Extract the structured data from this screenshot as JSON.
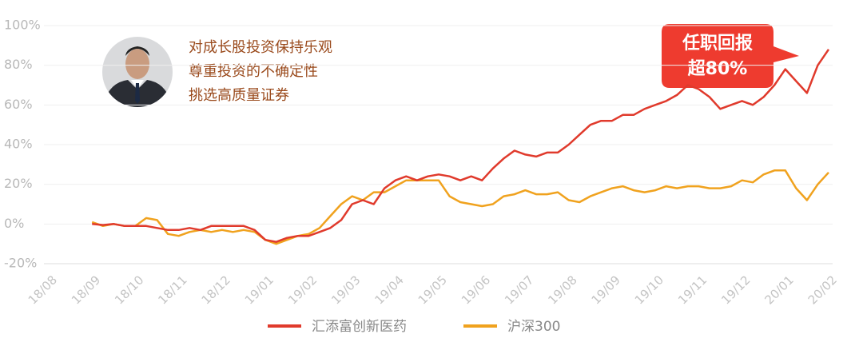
{
  "chart_data": {
    "type": "line",
    "categories": [
      "18/08",
      null,
      null,
      null,
      "18/09",
      null,
      null,
      null,
      "18/10",
      null,
      null,
      null,
      "18/11",
      null,
      null,
      null,
      "18/12",
      null,
      null,
      null,
      "19/01",
      null,
      null,
      null,
      "19/02",
      null,
      null,
      null,
      "19/03",
      null,
      null,
      null,
      "19/04",
      null,
      null,
      null,
      "19/05",
      null,
      null,
      null,
      "19/06",
      null,
      null,
      null,
      "19/07",
      null,
      null,
      null,
      "19/08",
      null,
      null,
      null,
      "19/09",
      null,
      null,
      null,
      "19/10",
      null,
      null,
      null,
      "19/11",
      null,
      null,
      null,
      "19/12",
      null,
      null,
      null,
      "20/01",
      null,
      null,
      null,
      "20/02"
    ],
    "series": [
      {
        "name": "汇添富创新医药",
        "color": "#e03a2c",
        "values": [
          null,
          null,
          null,
          null,
          0,
          -0.5,
          0,
          -1,
          -1,
          -1,
          -2,
          -3,
          -3,
          -2,
          -3,
          -1,
          -1,
          -1,
          -1,
          -3,
          -8,
          -9,
          -7,
          -6,
          -6,
          -4,
          -2,
          2,
          10,
          12,
          10,
          18,
          22,
          24,
          22,
          24,
          25,
          24,
          22,
          24,
          22,
          28,
          33,
          37,
          35,
          34,
          36,
          36,
          40,
          45,
          50,
          52,
          52,
          55,
          55,
          58,
          60,
          62,
          65,
          70,
          68,
          64,
          58,
          60,
          62,
          60,
          64,
          70,
          78,
          72,
          66,
          80,
          88
        ]
      },
      {
        "name": "沪深300",
        "color": "#f0a21e",
        "values": [
          null,
          null,
          null,
          null,
          1,
          -1,
          0,
          -1,
          -1,
          3,
          2,
          -5,
          -6,
          -4,
          -3,
          -4,
          -3,
          -4,
          -3,
          -4,
          -8,
          -10,
          -8,
          -6,
          -5,
          -2,
          4,
          10,
          14,
          12,
          16,
          16,
          19,
          22,
          22,
          22,
          22,
          14,
          11,
          10,
          9,
          10,
          14,
          15,
          17,
          15,
          15,
          16,
          12,
          11,
          14,
          16,
          18,
          19,
          17,
          16,
          17,
          19,
          18,
          19,
          19,
          18,
          18,
          19,
          22,
          21,
          25,
          27,
          27,
          18,
          12,
          20,
          26
        ]
      }
    ],
    "ylim": [
      -20,
      100
    ],
    "yticks": [
      {
        "value": -20,
        "label": "-20%"
      },
      {
        "value": 0,
        "label": "0%"
      },
      {
        "value": 20,
        "label": "20%"
      },
      {
        "value": 40,
        "label": "40%"
      },
      {
        "value": 60,
        "label": "60%"
      },
      {
        "value": 80,
        "label": "80%"
      },
      {
        "value": 100,
        "label": "100%"
      }
    ],
    "grid": true,
    "annotations": [
      "对成长股投资保持乐观",
      "尊重投资的不确定性",
      "挑选高质量证券"
    ],
    "callout": [
      "任职回报",
      "超80%"
    ]
  }
}
